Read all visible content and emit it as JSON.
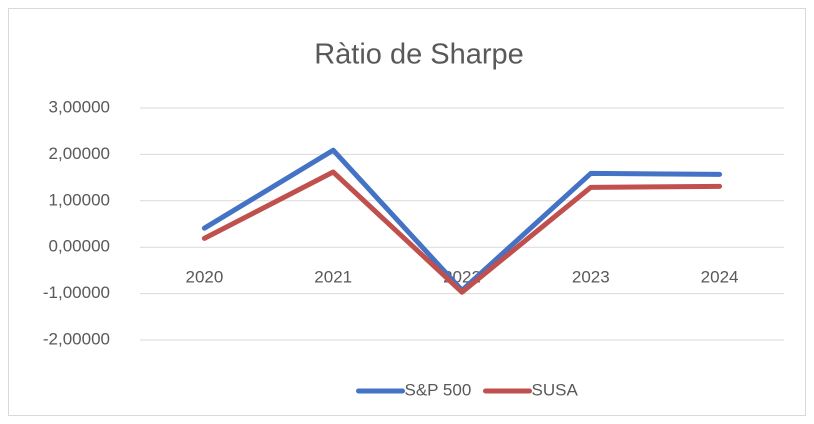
{
  "chart_data": {
    "type": "line",
    "title": "Ràtio de Sharpe",
    "categories": [
      "2020",
      "2021",
      "2022",
      "2023",
      "2024"
    ],
    "series": [
      {
        "name": "S&P 500",
        "color": "#4472c4",
        "values": [
          0.41,
          2.09,
          -0.93,
          1.59,
          1.57
        ]
      },
      {
        "name": "SUSA",
        "color": "#c0504d",
        "values": [
          0.19,
          1.62,
          -0.97,
          1.29,
          1.31
        ]
      }
    ],
    "ylim": [
      -2,
      3
    ],
    "yticks": [
      {
        "value": -2,
        "label": "-2,00000"
      },
      {
        "value": -1,
        "label": "-1,00000"
      },
      {
        "value": 0,
        "label": "0,00000"
      },
      {
        "value": 1,
        "label": "1,00000"
      },
      {
        "value": 2,
        "label": "2,00000"
      },
      {
        "value": 3,
        "label": "3,00000"
      }
    ],
    "grid": true,
    "legend": "bottom"
  }
}
